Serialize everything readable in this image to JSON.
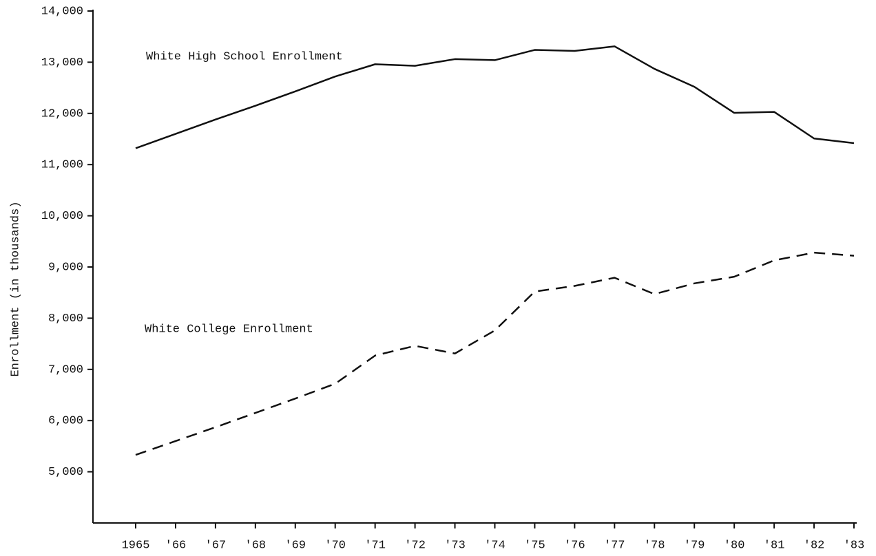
{
  "chart_data": {
    "type": "line",
    "y_label": "Enrollment (in thousands)",
    "annotations": [
      "White High School Enrollment",
      "White College Enrollment"
    ],
    "categories": [
      "1965",
      "'66",
      "'67",
      "'68",
      "'69",
      "'70",
      "'71",
      "'72",
      "'73",
      "'74",
      "'75",
      "'76",
      "'77",
      "'78",
      "'79",
      "'80",
      "'81",
      "'82",
      "'83"
    ],
    "series": [
      {
        "name": "White High School Enrollment",
        "color": "#111111",
        "dashed": false,
        "values": [
          11320,
          11600,
          11880,
          12150,
          12430,
          12720,
          12960,
          12930,
          13060,
          13040,
          13240,
          13220,
          13310,
          12870,
          12520,
          12010,
          12030,
          11510,
          11420
        ]
      },
      {
        "name": "White College Enrollment",
        "color": "#111111",
        "dashed": true,
        "values": [
          5330,
          5600,
          5870,
          6150,
          6430,
          6720,
          7270,
          7460,
          7310,
          7760,
          8520,
          8630,
          8790,
          8470,
          8680,
          8810,
          9130,
          9280,
          9220
        ]
      }
    ],
    "ylim": [
      4000,
      14000
    ],
    "yticks": [
      {
        "value": 5000,
        "label": "5,000"
      },
      {
        "value": 6000,
        "label": "6,000"
      },
      {
        "value": 7000,
        "label": "7,000"
      },
      {
        "value": 8000,
        "label": "8,000"
      },
      {
        "value": 9000,
        "label": "9,000"
      },
      {
        "value": 10000,
        "label": "10,000"
      },
      {
        "value": 11000,
        "label": "11,000"
      },
      {
        "value": 12000,
        "label": "12,000"
      },
      {
        "value": 13000,
        "label": "13,000"
      },
      {
        "value": 14000,
        "label": "14,000"
      }
    ],
    "grid": false
  }
}
